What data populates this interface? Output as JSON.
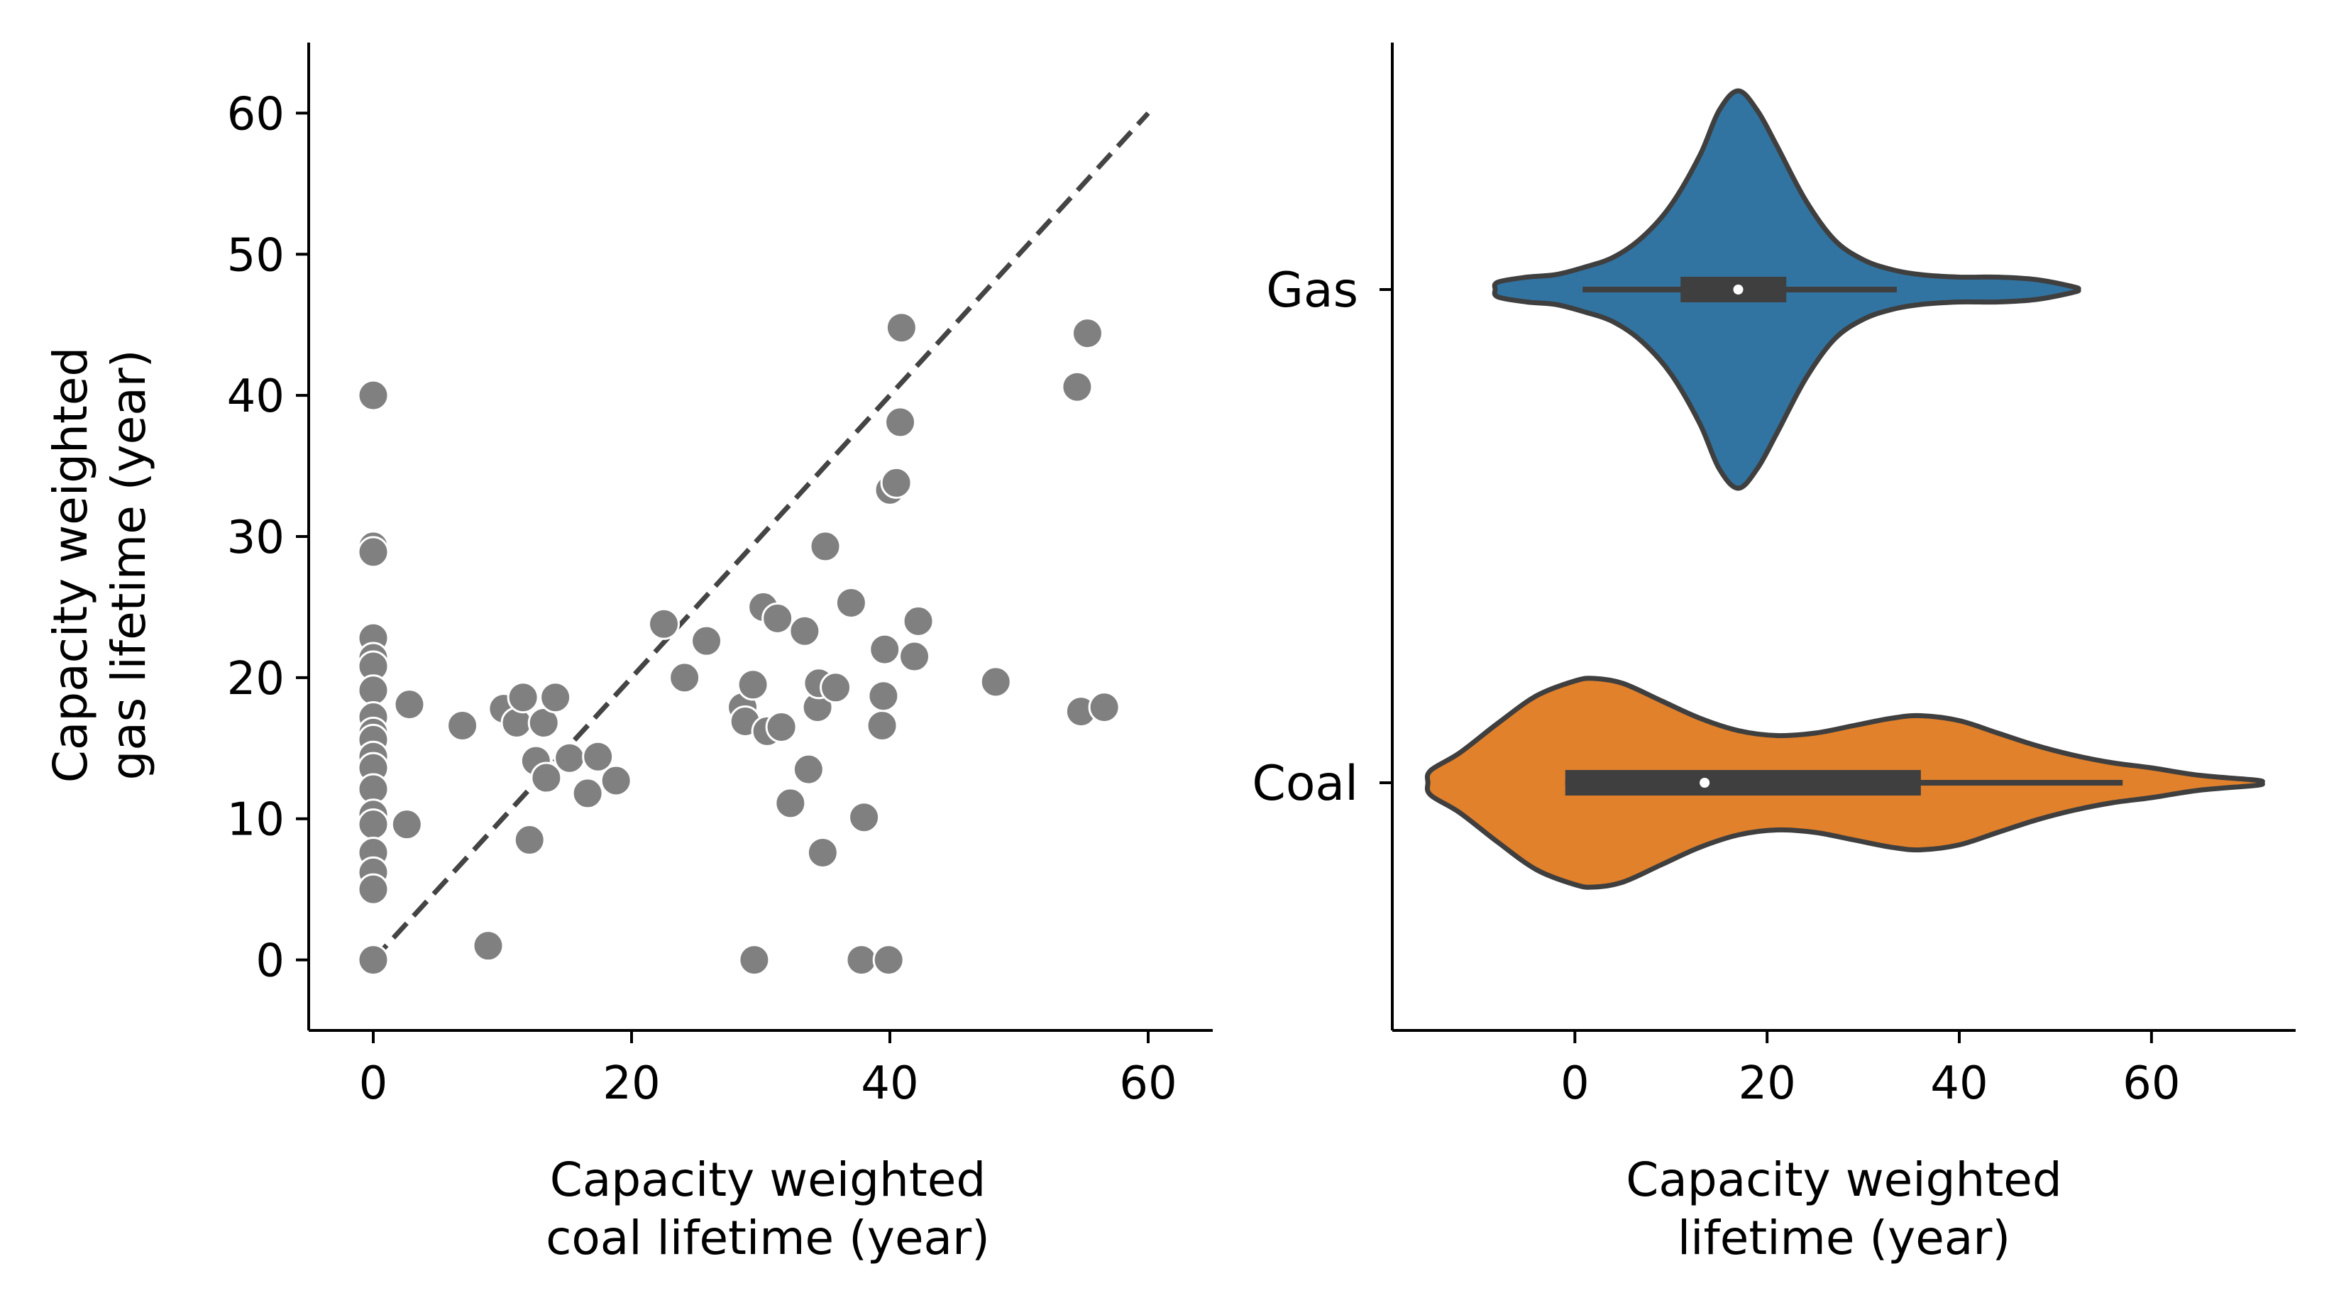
{
  "chart_data": [
    {
      "type": "scatter",
      "title": "",
      "xlabel": [
        "Capacity weighted",
        "coal lifetime (year)"
      ],
      "ylabel": [
        "Capacity weighted",
        "gas lifetime (year)"
      ],
      "xlim": [
        -5,
        65
      ],
      "ylim": [
        -5,
        65
      ],
      "xticks": [
        0,
        20,
        40,
        60
      ],
      "yticks": [
        0,
        10,
        20,
        30,
        40,
        50,
        60
      ],
      "grid": false,
      "point_color": "#808080",
      "reference_line": {
        "style": "dashed",
        "color": "#444444",
        "from": [
          0,
          0
        ],
        "to": [
          60,
          60
        ]
      },
      "points": [
        [
          0,
          40
        ],
        [
          0,
          29.3
        ],
        [
          0,
          28.9
        ],
        [
          0,
          22.8
        ],
        [
          0,
          21.4
        ],
        [
          0,
          20.8
        ],
        [
          0,
          19.1
        ],
        [
          0,
          17.2
        ],
        [
          0,
          16.1
        ],
        [
          0,
          15.6
        ],
        [
          0,
          14.4
        ],
        [
          0,
          13.6
        ],
        [
          0,
          12.1
        ],
        [
          0,
          10.3
        ],
        [
          0,
          9.6
        ],
        [
          0,
          7.6
        ],
        [
          0,
          6.2
        ],
        [
          0,
          5
        ],
        [
          0,
          0
        ],
        [
          2.8,
          18.1
        ],
        [
          2.6,
          9.6
        ],
        [
          6.9,
          16.6
        ],
        [
          8.9,
          1
        ],
        [
          10.1,
          17.8
        ],
        [
          11.1,
          16.8
        ],
        [
          11.6,
          18.6
        ],
        [
          12.1,
          8.5
        ],
        [
          12.6,
          14.1
        ],
        [
          13.2,
          16.8
        ],
        [
          13.4,
          12.9
        ],
        [
          14.1,
          18.6
        ],
        [
          15.2,
          14.3
        ],
        [
          16.6,
          11.8
        ],
        [
          17.4,
          14.4
        ],
        [
          18.8,
          12.7
        ],
        [
          22.5,
          23.8
        ],
        [
          24.1,
          20.0
        ],
        [
          25.8,
          22.6
        ],
        [
          28.6,
          17.9
        ],
        [
          28.8,
          16.9
        ],
        [
          29.4,
          19.5
        ],
        [
          29.5,
          0
        ],
        [
          30.2,
          25.0
        ],
        [
          30.5,
          16.2
        ],
        [
          31.3,
          24.2
        ],
        [
          31.6,
          16.5
        ],
        [
          32.3,
          11.1
        ],
        [
          33.4,
          23.3
        ],
        [
          33.7,
          13.5
        ],
        [
          34.4,
          17.9
        ],
        [
          34.5,
          19.6
        ],
        [
          34.8,
          7.6
        ],
        [
          35.0,
          29.3
        ],
        [
          35.8,
          19.3
        ],
        [
          37.0,
          25.3
        ],
        [
          37.8,
          0
        ],
        [
          38.0,
          10.1
        ],
        [
          39.4,
          16.6
        ],
        [
          39.5,
          18.7
        ],
        [
          39.6,
          22.0
        ],
        [
          39.9,
          0
        ],
        [
          40.0,
          33.3
        ],
        [
          40.5,
          33.8
        ],
        [
          40.8,
          38.1
        ],
        [
          40.9,
          44.8
        ],
        [
          41.9,
          21.5
        ],
        [
          42.2,
          24.0
        ],
        [
          48.2,
          19.7
        ],
        [
          54.5,
          40.6
        ],
        [
          54.8,
          17.6
        ],
        [
          55.3,
          44.4
        ],
        [
          56.6,
          17.9
        ]
      ]
    },
    {
      "type": "violin",
      "title": "",
      "xlabel": [
        "Capacity weighted",
        "lifetime (year)"
      ],
      "ylabel": "",
      "xticks": [
        0,
        20,
        40,
        60
      ],
      "xlim": [
        -19,
        75
      ],
      "grid": false,
      "categories": [
        "Gas",
        "Coal"
      ],
      "series": [
        {
          "name": "Gas",
          "color": "#3274a1",
          "range": [
            -8,
            52
          ],
          "box": {
            "q1": 11,
            "median": 17,
            "q3": 22,
            "whisker_low": 0.8,
            "whisker_high": 33.5
          },
          "density_profile": [
            [
              -8,
              0.03
            ],
            [
              -5,
              0.05
            ],
            [
              -2,
              0.06
            ],
            [
              1,
              0.09
            ],
            [
              4,
              0.13
            ],
            [
              7,
              0.21
            ],
            [
              10,
              0.34
            ],
            [
              13,
              0.54
            ],
            [
              15,
              0.72
            ],
            [
              17,
              0.8
            ],
            [
              19,
              0.72
            ],
            [
              21,
              0.58
            ],
            [
              24,
              0.36
            ],
            [
              27,
              0.2
            ],
            [
              30,
              0.12
            ],
            [
              33,
              0.08
            ],
            [
              36,
              0.06
            ],
            [
              40,
              0.05
            ],
            [
              44,
              0.05
            ],
            [
              48,
              0.04
            ],
            [
              52,
              0.01
            ]
          ]
        },
        {
          "name": "Coal",
          "color": "#e1812c",
          "range": [
            -15,
            71
          ],
          "box": {
            "q1": -1,
            "median": 13.5,
            "q3": 36,
            "whisker_low": -1,
            "whisker_high": 57
          },
          "density_profile": [
            [
              -15,
              0.05
            ],
            [
              -12,
              0.12
            ],
            [
              -8,
              0.24
            ],
            [
              -4,
              0.35
            ],
            [
              0,
              0.41
            ],
            [
              2,
              0.42
            ],
            [
              5,
              0.4
            ],
            [
              9,
              0.33
            ],
            [
              13,
              0.26
            ],
            [
              17,
              0.21
            ],
            [
              21,
              0.19
            ],
            [
              25,
              0.2
            ],
            [
              29,
              0.23
            ],
            [
              33,
              0.26
            ],
            [
              36,
              0.27
            ],
            [
              40,
              0.25
            ],
            [
              44,
              0.2
            ],
            [
              48,
              0.15
            ],
            [
              52,
              0.11
            ],
            [
              56,
              0.08
            ],
            [
              60,
              0.06
            ],
            [
              65,
              0.03
            ],
            [
              71,
              0.01
            ]
          ]
        }
      ]
    }
  ]
}
